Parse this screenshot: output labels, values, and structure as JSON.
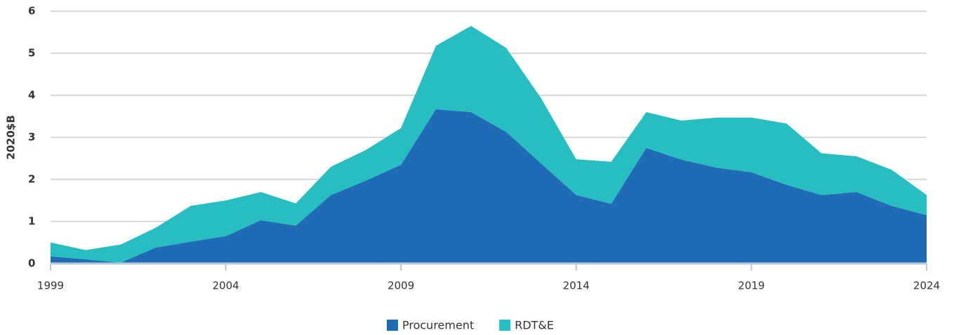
{
  "chart_data": {
    "type": "stacked_area",
    "y_label": "2020$B",
    "x": [
      1999,
      2000,
      2001,
      2002,
      2003,
      2004,
      2005,
      2006,
      2007,
      2008,
      2009,
      2010,
      2011,
      2012,
      2013,
      2014,
      2015,
      2016,
      2017,
      2018,
      2019,
      2020,
      2021,
      2022,
      2023,
      2024
    ],
    "series": [
      {
        "name": "Procurement",
        "color": "#1f6bb5",
        "values": [
          0.17,
          0.1,
          0.02,
          0.38,
          0.52,
          0.65,
          1.03,
          0.9,
          1.63,
          1.97,
          2.35,
          3.67,
          3.6,
          3.13,
          2.38,
          1.63,
          1.42,
          2.75,
          2.47,
          2.28,
          2.17,
          1.87,
          1.63,
          1.7,
          1.37,
          1.15
        ]
      },
      {
        "name": "RDT&E",
        "color": "#26bec0",
        "values": [
          0.33,
          0.22,
          0.43,
          0.47,
          0.85,
          0.85,
          0.67,
          0.53,
          0.67,
          0.73,
          0.87,
          1.51,
          2.05,
          2.0,
          1.55,
          0.85,
          1.0,
          0.85,
          0.93,
          1.19,
          1.3,
          1.46,
          0.99,
          0.85,
          0.86,
          0.48
        ]
      }
    ],
    "xlim": [
      1999,
      2024
    ],
    "xticks": [
      1999,
      2004,
      2009,
      2014,
      2019,
      2024
    ],
    "ylim": [
      0,
      6
    ],
    "yticks": [
      0,
      1,
      2,
      3,
      4,
      5,
      6
    ],
    "grid": true,
    "legend": "bottom"
  }
}
